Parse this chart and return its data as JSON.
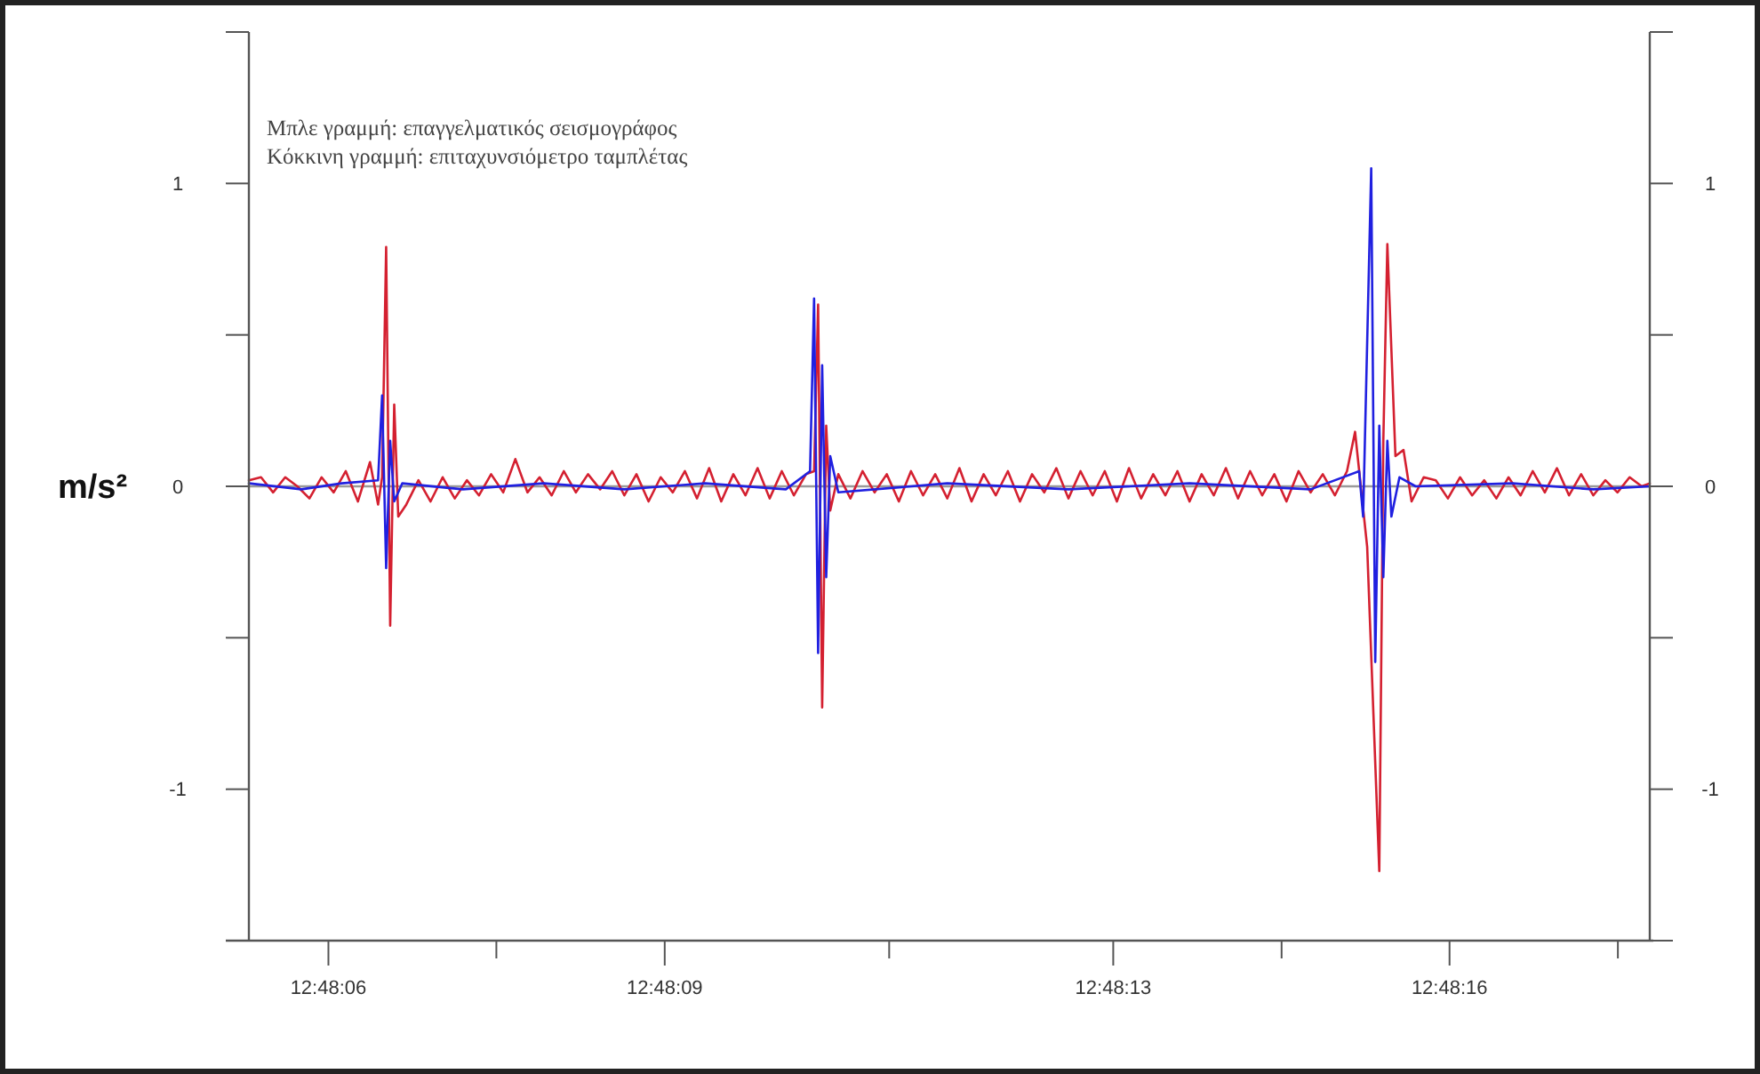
{
  "chart_data": {
    "type": "line",
    "ylabel": "m/s²",
    "annotations": [
      "Μπλε γραμμή: επαγγελματικός σεισμογράφος",
      "Κόκκινη γραμμή: επιταχυνσιόμετρο ταμπλέτας"
    ],
    "xlim": [
      12.80147,
      12.80494
    ],
    "xticks": [
      {
        "value": 12.801667,
        "label": "12:48:06"
      },
      {
        "value": 12.802083,
        "label": null
      },
      {
        "value": 12.8025,
        "label": "12:48:09"
      },
      {
        "value": 12.803056,
        "label": null
      },
      {
        "value": 12.803611,
        "label": "12:48:13"
      },
      {
        "value": 12.804028,
        "label": null
      },
      {
        "value": 12.804444,
        "label": "12:48:16"
      },
      {
        "value": 12.804861,
        "label": null
      }
    ],
    "ylim": [
      -1.5,
      1.5
    ],
    "yticks": [
      {
        "value": -1.5,
        "label": null
      },
      -1,
      {
        "value": -0.5,
        "label": null
      },
      0,
      {
        "value": 0.5,
        "label": null
      },
      1,
      {
        "value": 1.5,
        "label": null
      }
    ],
    "y2lim": [
      -1.5,
      1.5
    ],
    "y2ticks": [
      {
        "value": -1.5,
        "label": null
      },
      -1,
      {
        "value": -0.5,
        "label": null
      },
      0,
      {
        "value": 0.5,
        "label": null
      },
      1,
      {
        "value": 1.5,
        "label": null
      }
    ],
    "ref_lines": [
      {
        "axis": "y",
        "value": 0,
        "color": "#9a9a9a"
      }
    ],
    "grid": false,
    "marker": "none",
    "line_style": "solid",
    "series": [
      {
        "color": "#d42030",
        "x": [
          12.80147,
          12.8015,
          12.80153,
          12.80156,
          12.80159,
          12.80162,
          12.80165,
          12.80168,
          12.80171,
          12.80174,
          12.80177,
          12.80179,
          12.8018,
          12.80181,
          12.80182,
          12.80183,
          12.80184,
          12.80186,
          12.80189,
          12.80192,
          12.80195,
          12.80198,
          12.80201,
          12.80204,
          12.80207,
          12.8021,
          12.80213,
          12.80216,
          12.80219,
          12.80222,
          12.80225,
          12.80228,
          12.80231,
          12.80234,
          12.80237,
          12.8024,
          12.80243,
          12.80246,
          12.80249,
          12.80252,
          12.80255,
          12.80258,
          12.80261,
          12.80264,
          12.80267,
          12.8027,
          12.80273,
          12.80276,
          12.80279,
          12.80282,
          12.80285,
          12.80287,
          12.80288,
          12.80289,
          12.8029,
          12.80291,
          12.80293,
          12.80296,
          12.80299,
          12.80302,
          12.80305,
          12.80308,
          12.80311,
          12.80314,
          12.80317,
          12.8032,
          12.80323,
          12.80326,
          12.80329,
          12.80332,
          12.80335,
          12.80338,
          12.80341,
          12.80344,
          12.80347,
          12.8035,
          12.80353,
          12.80356,
          12.80359,
          12.80362,
          12.80365,
          12.80368,
          12.80371,
          12.80374,
          12.80377,
          12.8038,
          12.80383,
          12.80386,
          12.80389,
          12.80392,
          12.80395,
          12.80398,
          12.80401,
          12.80404,
          12.80407,
          12.8041,
          12.80413,
          12.80416,
          12.80419,
          12.80421,
          12.80424,
          12.80427,
          12.80428,
          12.80429,
          12.80431,
          12.80433,
          12.80435,
          12.80438,
          12.80441,
          12.80444,
          12.80447,
          12.8045,
          12.80453,
          12.80456,
          12.80459,
          12.80462,
          12.80465,
          12.80468,
          12.80471,
          12.80474,
          12.80477,
          12.8048,
          12.80483,
          12.80486,
          12.80489,
          12.80492,
          12.80494
        ],
        "values": [
          0.02,
          0.03,
          -0.02,
          0.03,
          0.0,
          -0.04,
          0.03,
          -0.02,
          0.05,
          -0.05,
          0.08,
          -0.06,
          0.03,
          0.79,
          -0.46,
          0.27,
          -0.1,
          -0.06,
          0.02,
          -0.05,
          0.03,
          -0.04,
          0.02,
          -0.03,
          0.04,
          -0.02,
          0.09,
          -0.02,
          0.03,
          -0.03,
          0.05,
          -0.02,
          0.04,
          -0.01,
          0.05,
          -0.03,
          0.04,
          -0.05,
          0.03,
          -0.02,
          0.05,
          -0.04,
          0.06,
          -0.05,
          0.04,
          -0.03,
          0.06,
          -0.04,
          0.05,
          -0.03,
          0.04,
          0.05,
          0.6,
          -0.73,
          0.2,
          -0.08,
          0.04,
          -0.04,
          0.05,
          -0.02,
          0.04,
          -0.05,
          0.05,
          -0.03,
          0.04,
          -0.04,
          0.06,
          -0.05,
          0.04,
          -0.03,
          0.05,
          -0.05,
          0.04,
          -0.02,
          0.06,
          -0.04,
          0.05,
          -0.03,
          0.05,
          -0.05,
          0.06,
          -0.04,
          0.04,
          -0.03,
          0.05,
          -0.05,
          0.04,
          -0.03,
          0.06,
          -0.04,
          0.05,
          -0.03,
          0.04,
          -0.05,
          0.05,
          -0.02,
          0.04,
          -0.03,
          0.05,
          0.18,
          -0.2,
          -1.27,
          0.15,
          0.8,
          0.1,
          0.12,
          -0.05,
          0.03,
          0.02,
          -0.04,
          0.03,
          -0.03,
          0.02,
          -0.04,
          0.03,
          -0.03,
          0.05,
          -0.02,
          0.06,
          -0.03,
          0.04,
          -0.03,
          0.02,
          -0.02,
          0.03,
          0.0,
          0.01
        ]
      },
      {
        "color": "#2020e0",
        "x": [
          12.80147,
          12.8016,
          12.8017,
          12.80179,
          12.8018,
          12.80181,
          12.80182,
          12.80183,
          12.80185,
          12.802,
          12.8022,
          12.8024,
          12.8026,
          12.8028,
          12.80286,
          12.80287,
          12.80288,
          12.80289,
          12.8029,
          12.80291,
          12.80293,
          12.8032,
          12.8035,
          12.8038,
          12.8041,
          12.80422,
          12.80423,
          12.80425,
          12.80426,
          12.80427,
          12.80428,
          12.80429,
          12.8043,
          12.80432,
          12.80436,
          12.8046,
          12.8048,
          12.80494
        ],
        "values": [
          0.01,
          -0.01,
          0.01,
          0.02,
          0.3,
          -0.27,
          0.15,
          -0.05,
          0.01,
          -0.01,
          0.01,
          -0.01,
          0.01,
          -0.01,
          0.05,
          0.62,
          -0.55,
          0.4,
          -0.3,
          0.1,
          -0.02,
          0.01,
          -0.01,
          0.01,
          -0.01,
          0.05,
          -0.1,
          1.05,
          -0.58,
          0.2,
          -0.3,
          0.15,
          -0.1,
          0.03,
          0.0,
          0.01,
          -0.01,
          0.0
        ]
      }
    ]
  }
}
